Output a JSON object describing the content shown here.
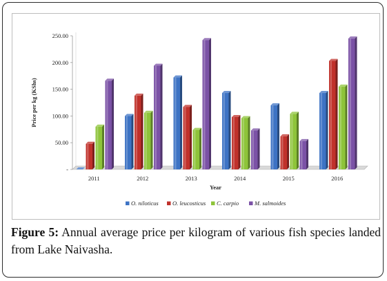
{
  "chart_data": {
    "type": "bar",
    "categories": [
      "2011",
      "2012",
      "2013",
      "2014",
      "2015",
      "2016"
    ],
    "series": [
      {
        "name": "O. niloticus",
        "color": "#3d73c4",
        "values": [
          0,
          100,
          172,
          143,
          120,
          143
        ]
      },
      {
        "name": "O. leucosticus",
        "color": "#c0312b",
        "values": [
          48,
          138,
          117,
          98,
          62,
          203
        ]
      },
      {
        "name": "C. carpio",
        "color": "#8ec43a",
        "values": [
          80,
          106,
          74,
          96,
          104,
          155
        ]
      },
      {
        "name": "M. salmoides",
        "color": "#7b52a6",
        "values": [
          166,
          194,
          242,
          73,
          53,
          245
        ]
      }
    ],
    "xlabel": "Year",
    "ylabel": "Price per kg (KShs)",
    "ylim": [
      0,
      250
    ],
    "yticks": [
      0,
      50,
      100,
      150,
      200,
      250
    ],
    "ytick_labels": [
      "-",
      "50.00",
      "100.00",
      "150.00",
      "200.00",
      "250.00"
    ],
    "grid": false,
    "legend_position": "bottom",
    "style": "3d-bar"
  },
  "caption": {
    "label": "Figure 5:",
    "text": "Annual average price per kilogram of various fish species landed from Lake Naivasha."
  }
}
